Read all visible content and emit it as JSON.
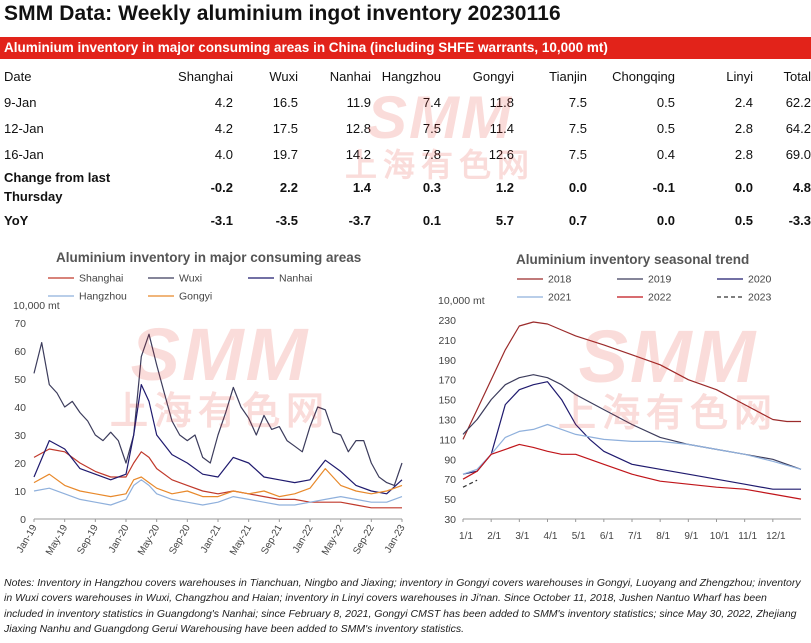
{
  "title": "SMM Data: Weekly aluminium ingot inventory 20230116",
  "banner": "Aluminium inventory in major consuming areas in China (including SHFE warrants, 10,000 mt)",
  "table": {
    "headers": [
      "Date",
      "Shanghai",
      "Wuxi",
      "Nanhai",
      "Hangzhou",
      "Gongyi",
      "Tianjin",
      "Chongqing",
      "Linyi",
      "Total"
    ],
    "rows": [
      [
        "9-Jan",
        "4.2",
        "16.5",
        "11.9",
        "7.4",
        "11.8",
        "7.5",
        "0.5",
        "2.4",
        "62.2"
      ],
      [
        "12-Jan",
        "4.2",
        "17.5",
        "12.8",
        "7.5",
        "11.4",
        "7.5",
        "0.5",
        "2.8",
        "64.2"
      ],
      [
        "16-Jan",
        "4.0",
        "19.7",
        "14.2",
        "7.8",
        "12.6",
        "7.5",
        "0.4",
        "2.8",
        "69.0"
      ]
    ],
    "change_row": [
      "Change from last Thursday",
      "-0.2",
      "2.2",
      "1.4",
      "0.3",
      "1.2",
      "0.0",
      "-0.1",
      "0.0",
      "4.8"
    ],
    "yoy_row": [
      "YoY",
      "-3.1",
      "-3.5",
      "-3.7",
      "0.1",
      "5.7",
      "0.7",
      "0.0",
      "0.5",
      "-3.3"
    ]
  },
  "watermark": {
    "big": "SMM",
    "small": "上海有色网"
  },
  "colors": {
    "accent_red": "#e2231a",
    "Shanghai": "#c0392b",
    "Wuxi": "#3c3c5c",
    "Nanhai": "#1f1a6e",
    "Hangzhou": "#8fb0dc",
    "Gongyi": "#e8892b",
    "2018": "#9b2b2b",
    "2019": "#3c3c5c",
    "2020": "#1f1a6e",
    "2021": "#8fb0dc",
    "2022": "#c0151a",
    "2023": "#333333"
  },
  "notes": "Notes: Inventory in Hangzhou covers warehouses in Tianchuan, Ningbo and Jiaxing; inventory in Gongyi covers warehouses in Gongyi, Luoyang and Zhengzhou; inventory in Wuxi covers warehouses in Wuxi, Changzhou and Haian; inventory in Linyi covers warehouses in Ji'nan. Since October 11, 2018, Jushen Nantuo Wharf has been included in inventory statistics in Guangdong's Nanhai; since February 8, 2021, Gongyi CMST has been added to SMM's inventory statistics; since May 30, 2022, Zhejiang Jiaxing Nanhu and Guangdong Gerui Warehousing have been added to SMM's inventory statistics.",
  "chart_data": [
    {
      "type": "line",
      "title": "Aluminium inventory in major consuming areas",
      "ylabel": "10,000 mt",
      "ylim": [
        0,
        70
      ],
      "yticks": [
        0,
        10,
        20,
        30,
        40,
        50,
        60,
        70
      ],
      "xticks": [
        "Jan-19",
        "May-19",
        "Sep-19",
        "Jan-20",
        "May-20",
        "Sep-20",
        "Jan-21",
        "May-21",
        "Sep-21",
        "Jan-22",
        "May-22",
        "Sep-22",
        "Jan-23"
      ],
      "legend_placement": "top",
      "grid": false,
      "series": [
        {
          "name": "Shanghai",
          "x": [
            "Jan-19",
            "Mar-19",
            "May-19",
            "Jul-19",
            "Sep-19",
            "Nov-19",
            "Jan-20",
            "Feb-20",
            "Mar-20",
            "Apr-20",
            "May-20",
            "Jul-20",
            "Sep-20",
            "Nov-20",
            "Jan-21",
            "Mar-21",
            "May-21",
            "Jul-21",
            "Sep-21",
            "Nov-21",
            "Jan-22",
            "Mar-22",
            "May-22",
            "Jul-22",
            "Sep-22",
            "Nov-22",
            "Jan-23"
          ],
          "values": [
            22,
            25,
            24,
            20,
            17,
            15,
            15,
            20,
            24,
            22,
            18,
            14,
            12,
            10,
            9,
            10,
            9,
            8,
            7,
            7,
            6,
            6,
            6,
            5,
            4,
            4,
            4
          ]
        },
        {
          "name": "Wuxi",
          "x": [
            "Jan-19",
            "Feb-19",
            "Mar-19",
            "Apr-19",
            "May-19",
            "Jun-19",
            "Jul-19",
            "Aug-19",
            "Sep-19",
            "Oct-19",
            "Nov-19",
            "Dec-19",
            "Jan-20",
            "Feb-20",
            "Mar-20",
            "Apr-20",
            "May-20",
            "Jun-20",
            "Jul-20",
            "Aug-20",
            "Sep-20",
            "Oct-20",
            "Nov-20",
            "Dec-20",
            "Jan-21",
            "Feb-21",
            "Mar-21",
            "Apr-21",
            "May-21",
            "Jun-21",
            "Jul-21",
            "Aug-21",
            "Sep-21",
            "Oct-21",
            "Nov-21",
            "Dec-21",
            "Jan-22",
            "Feb-22",
            "Mar-22",
            "Apr-22",
            "May-22",
            "Jun-22",
            "Jul-22",
            "Aug-22",
            "Sep-22",
            "Oct-22",
            "Nov-22",
            "Dec-22",
            "Jan-23"
          ],
          "values": [
            52,
            63,
            48,
            45,
            40,
            42,
            38,
            35,
            30,
            28,
            31,
            28,
            20,
            30,
            58,
            66,
            55,
            45,
            35,
            30,
            28,
            30,
            22,
            20,
            30,
            38,
            47,
            40,
            36,
            30,
            37,
            32,
            33,
            28,
            26,
            24,
            33,
            40,
            39,
            31,
            30,
            24,
            28,
            28,
            20,
            15,
            13,
            12,
            20
          ]
        },
        {
          "name": "Nanhai",
          "x": [
            "Jan-19",
            "Mar-19",
            "May-19",
            "Jul-19",
            "Sep-19",
            "Nov-19",
            "Jan-20",
            "Feb-20",
            "Mar-20",
            "Apr-20",
            "May-20",
            "Jul-20",
            "Sep-20",
            "Nov-20",
            "Jan-21",
            "Mar-21",
            "May-21",
            "Jul-21",
            "Sep-21",
            "Nov-21",
            "Jan-22",
            "Mar-22",
            "May-22",
            "Jul-22",
            "Sep-22",
            "Nov-22",
            "Jan-23"
          ],
          "values": [
            15,
            28,
            25,
            18,
            16,
            14,
            16,
            30,
            48,
            42,
            30,
            23,
            20,
            16,
            15,
            22,
            20,
            15,
            14,
            13,
            14,
            21,
            17,
            12,
            10,
            9,
            14
          ]
        },
        {
          "name": "Hangzhou",
          "x": [
            "Jan-19",
            "Mar-19",
            "May-19",
            "Jul-19",
            "Sep-19",
            "Nov-19",
            "Jan-20",
            "Feb-20",
            "Mar-20",
            "Apr-20",
            "May-20",
            "Jul-20",
            "Sep-20",
            "Nov-20",
            "Jan-21",
            "Mar-21",
            "May-21",
            "Jul-21",
            "Sep-21",
            "Nov-21",
            "Jan-22",
            "Mar-22",
            "May-22",
            "Jul-22",
            "Sep-22",
            "Nov-22",
            "Jan-23"
          ],
          "values": [
            10,
            11,
            9,
            7,
            6,
            5,
            7,
            12,
            14,
            12,
            9,
            7,
            6,
            5,
            6,
            8,
            7,
            6,
            5,
            5,
            6,
            7,
            8,
            7,
            6,
            6,
            8
          ]
        },
        {
          "name": "Gongyi",
          "x": [
            "Jan-19",
            "Mar-19",
            "May-19",
            "Jul-19",
            "Sep-19",
            "Nov-19",
            "Jan-20",
            "Feb-20",
            "Mar-20",
            "Apr-20",
            "May-20",
            "Jul-20",
            "Sep-20",
            "Nov-20",
            "Jan-21",
            "Mar-21",
            "May-21",
            "Jul-21",
            "Sep-21",
            "Nov-21",
            "Jan-22",
            "Mar-22",
            "May-22",
            "Jul-22",
            "Sep-22",
            "Nov-22",
            "Jan-23"
          ],
          "values": [
            13,
            16,
            12,
            10,
            9,
            8,
            9,
            14,
            15,
            13,
            11,
            9,
            10,
            8,
            8,
            10,
            9,
            10,
            8,
            9,
            11,
            18,
            12,
            10,
            9,
            10,
            12
          ]
        }
      ]
    },
    {
      "type": "line",
      "title": "Aluminium inventory seasonal trend",
      "ylabel": "10,000 mt",
      "ylim": [
        30,
        230
      ],
      "yticks": [
        30,
        50,
        70,
        90,
        110,
        130,
        150,
        170,
        190,
        210,
        230
      ],
      "xticks": [
        "1/1",
        "2/1",
        "3/1",
        "4/1",
        "5/1",
        "6/1",
        "7/1",
        "8/1",
        "9/1",
        "10/1",
        "11/1",
        "12/1"
      ],
      "legend_placement": "top",
      "grid": false,
      "series": [
        {
          "name": "2018",
          "x": [
            0,
            0.5,
            1,
            1.5,
            2,
            2.5,
            3,
            3.5,
            4,
            5,
            6,
            7,
            8,
            9,
            10,
            11,
            11.5,
            12
          ],
          "values": [
            110,
            140,
            170,
            200,
            224,
            228,
            226,
            220,
            214,
            205,
            195,
            185,
            170,
            160,
            145,
            130,
            128,
            128
          ]
        },
        {
          "name": "2019",
          "x": [
            0,
            0.5,
            1,
            1.5,
            2,
            2.5,
            3,
            3.5,
            4,
            5,
            6,
            7,
            8,
            9,
            10,
            11,
            12
          ],
          "values": [
            115,
            130,
            150,
            165,
            172,
            175,
            172,
            165,
            155,
            140,
            125,
            112,
            105,
            100,
            95,
            90,
            80
          ]
        },
        {
          "name": "2020",
          "x": [
            0,
            0.5,
            1,
            1.5,
            2,
            2.5,
            3,
            3.5,
            4,
            4.5,
            5,
            6,
            7,
            8,
            9,
            10,
            11,
            12
          ],
          "values": [
            75,
            78,
            95,
            145,
            160,
            165,
            168,
            150,
            125,
            110,
            98,
            85,
            80,
            75,
            70,
            65,
            60,
            60
          ]
        },
        {
          "name": "2021",
          "x": [
            0,
            0.5,
            1,
            1.5,
            2,
            2.5,
            3,
            3.5,
            4,
            5,
            6,
            7,
            8,
            9,
            10,
            11,
            12
          ],
          "values": [
            75,
            80,
            95,
            112,
            118,
            120,
            125,
            120,
            115,
            110,
            108,
            108,
            105,
            100,
            95,
            88,
            80
          ]
        },
        {
          "name": "2022",
          "x": [
            0,
            0.5,
            1,
            1.5,
            2,
            2.5,
            3,
            3.5,
            4,
            5,
            6,
            7,
            8,
            9,
            10,
            11,
            12
          ],
          "values": [
            70,
            78,
            95,
            100,
            105,
            102,
            98,
            95,
            95,
            85,
            75,
            68,
            65,
            62,
            60,
            55,
            50
          ]
        },
        {
          "name": "2023",
          "x": [
            0,
            0.5
          ],
          "values": [
            62,
            69
          ]
        }
      ]
    }
  ]
}
